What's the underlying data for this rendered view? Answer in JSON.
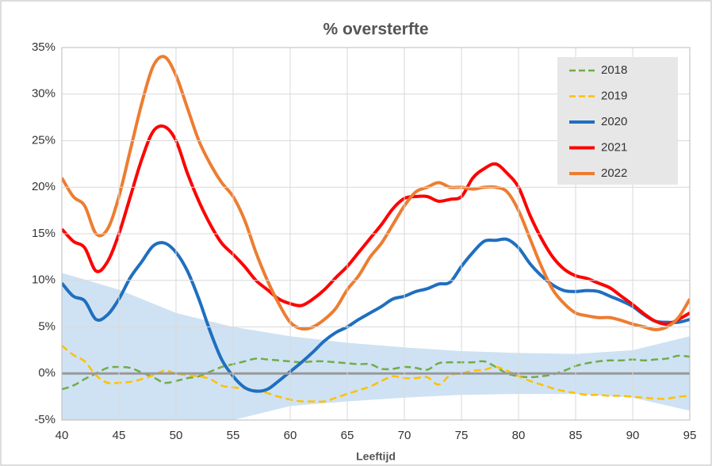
{
  "chart_data": {
    "type": "line",
    "title": "% oversterfte",
    "x_label": "Leeftijd",
    "x": [
      40,
      41,
      42,
      43,
      44,
      45,
      46,
      47,
      48,
      49,
      50,
      51,
      52,
      53,
      54,
      55,
      56,
      57,
      58,
      59,
      60,
      61,
      62,
      63,
      64,
      65,
      66,
      67,
      68,
      69,
      70,
      71,
      72,
      73,
      74,
      75,
      76,
      77,
      78,
      79,
      80,
      81,
      82,
      83,
      84,
      85,
      86,
      87,
      88,
      89,
      90,
      91,
      92,
      93,
      94,
      95
    ],
    "series": [
      {
        "name": "2018",
        "color": "#70ad47",
        "dash": true,
        "values": [
          -1.7,
          -1.3,
          -0.6,
          0,
          0.6,
          0.7,
          0.6,
          0.1,
          -0.4,
          -1,
          -0.8,
          -0.5,
          -0.3,
          0.2,
          0.7,
          1,
          1.3,
          1.6,
          1.5,
          1.4,
          1.3,
          1.2,
          1.3,
          1.3,
          1.2,
          1.1,
          1,
          1,
          0.5,
          0.5,
          0.7,
          0.6,
          0.4,
          1.1,
          1.2,
          1.2,
          1.2,
          1.3,
          0.7,
          0,
          -0.3,
          -0.4,
          -0.3,
          -0.1,
          0.3,
          0.8,
          1.1,
          1.3,
          1.4,
          1.4,
          1.5,
          1.4,
          1.5,
          1.6,
          1.9,
          1.8
        ]
      },
      {
        "name": "2019",
        "color": "#ffc000",
        "dash": true,
        "values": [
          3,
          2,
          1.3,
          -0.2,
          -1,
          -1,
          -0.9,
          -0.6,
          -0.2,
          0.3,
          0,
          -0.2,
          -0.3,
          -0.6,
          -1.3,
          -1.5,
          -1.6,
          -1.8,
          -2.1,
          -2.5,
          -2.8,
          -3,
          -3,
          -3,
          -2.6,
          -2.2,
          -1.8,
          -1.4,
          -0.8,
          -0.3,
          -0.5,
          -0.5,
          -0.4,
          -1.2,
          -0.2,
          0,
          0.3,
          0.4,
          0.7,
          0.3,
          -0.3,
          -0.8,
          -1.2,
          -1.6,
          -1.9,
          -2.1,
          -2.3,
          -2.3,
          -2.4,
          -2.4,
          -2.5,
          -2.6,
          -2.7,
          -2.7,
          -2.5,
          -2.4
        ]
      },
      {
        "name": "2020",
        "color": "#1f6fc0",
        "dash": false,
        "values": [
          9.7,
          8.3,
          7.8,
          5.8,
          6.3,
          8,
          10.3,
          12,
          13.7,
          14,
          13,
          11,
          8,
          4.5,
          1.5,
          -0.3,
          -1.5,
          -1.9,
          -1.7,
          -0.8,
          0.2,
          1.2,
          2.3,
          3.5,
          4.4,
          5,
          5.8,
          6.5,
          7.2,
          8,
          8.3,
          8.8,
          9.1,
          9.6,
          9.8,
          11.5,
          13,
          14.2,
          14.3,
          14.4,
          13.5,
          11.8,
          10.5,
          9.5,
          8.9,
          8.8,
          8.9,
          8.8,
          8.3,
          7.8,
          7.2,
          6.3,
          5.6,
          5.5,
          5.5,
          5.8
        ]
      },
      {
        "name": "2021",
        "color": "#ff0000",
        "dash": false,
        "values": [
          15.5,
          14.2,
          13.5,
          11,
          12,
          15,
          19,
          23,
          26,
          26.5,
          25,
          21.5,
          18.5,
          16,
          14,
          12.8,
          11.5,
          10,
          9,
          8,
          7.5,
          7.3,
          8,
          9,
          10.3,
          11.5,
          13,
          14.5,
          16,
          17.7,
          18.8,
          19,
          19,
          18.5,
          18.7,
          19,
          21,
          22,
          22.5,
          21.5,
          20,
          17,
          14.5,
          12.5,
          11.2,
          10.5,
          10.2,
          9.7,
          9.2,
          8.3,
          7.4,
          6.4,
          5.6,
          5.3,
          5.8,
          6.5
        ]
      },
      {
        "name": "2022",
        "color": "#ed7d31",
        "dash": false,
        "values": [
          21,
          19,
          18,
          15,
          15.5,
          19,
          24,
          29,
          33,
          34,
          32,
          28.5,
          25,
          22.5,
          20.5,
          19,
          16.5,
          13,
          10,
          7.5,
          5.5,
          4.8,
          5,
          5.8,
          7,
          9,
          10.5,
          12.5,
          14,
          16,
          18,
          19.5,
          20,
          20.5,
          20,
          20,
          19.8,
          20,
          20,
          19.5,
          17.5,
          14.5,
          11.5,
          9,
          7.5,
          6.5,
          6.2,
          6,
          6,
          5.7,
          5.3,
          5,
          4.7,
          5,
          6,
          8
        ]
      }
    ],
    "band": {
      "color": "#cfe2f3",
      "x": [
        40,
        45,
        50,
        55,
        60,
        65,
        70,
        75,
        80,
        85,
        90,
        95
      ],
      "upper": [
        10.8,
        9,
        6.5,
        5,
        4,
        3.3,
        2.8,
        2.4,
        2.2,
        2.1,
        2.5,
        4
      ],
      "lower": [
        -6,
        -6,
        -5.7,
        -5,
        -3.5,
        -3,
        -2.6,
        -2.3,
        -2.2,
        -2.2,
        -2.6,
        -4
      ]
    },
    "xlim": [
      40,
      95
    ],
    "xticks": [
      40,
      45,
      50,
      55,
      60,
      65,
      70,
      75,
      80,
      85,
      90,
      95
    ],
    "ylim": [
      -5,
      35
    ],
    "yticks": [
      {
        "value": -5,
        "label": "-5%"
      },
      {
        "value": 0,
        "label": "0%"
      },
      {
        "value": 5,
        "label": "5%"
      },
      {
        "value": 10,
        "label": "10%"
      },
      {
        "value": 15,
        "label": "15%"
      },
      {
        "value": 20,
        "label": "20%"
      },
      {
        "value": 25,
        "label": "25%"
      },
      {
        "value": 30,
        "label": "30%"
      },
      {
        "value": 35,
        "label": "35%"
      }
    ],
    "grid": true,
    "legend": "upper right"
  }
}
